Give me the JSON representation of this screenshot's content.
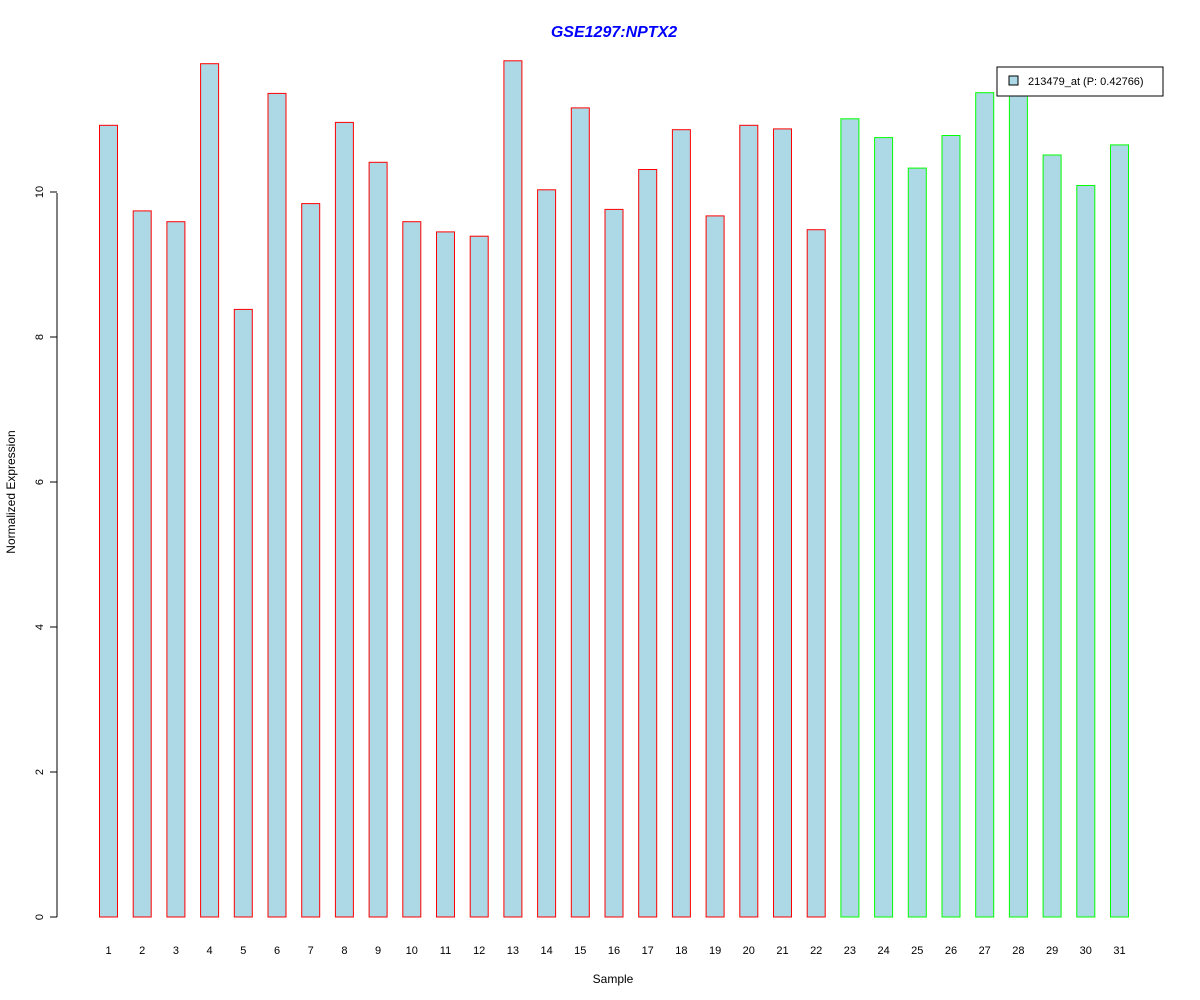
{
  "chart_data": {
    "type": "bar",
    "title": "GSE1297:NPTX2",
    "xlabel": "Sample",
    "ylabel": "Normalized Expression",
    "ylim": [
      0,
      11.9
    ],
    "y_ticks": [
      0,
      2,
      4,
      6,
      8,
      10
    ],
    "categories": [
      "1",
      "2",
      "3",
      "4",
      "5",
      "6",
      "7",
      "8",
      "9",
      "10",
      "11",
      "12",
      "13",
      "14",
      "15",
      "16",
      "17",
      "18",
      "19",
      "20",
      "21",
      "22",
      "23",
      "24",
      "25",
      "26",
      "27",
      "28",
      "29",
      "30",
      "31"
    ],
    "values": [
      10.92,
      9.74,
      9.59,
      11.77,
      8.38,
      11.36,
      9.84,
      10.96,
      10.41,
      9.59,
      9.45,
      9.39,
      11.81,
      10.03,
      11.16,
      9.76,
      10.31,
      10.86,
      9.67,
      10.92,
      10.87,
      9.48,
      11.01,
      10.75,
      10.33,
      10.78,
      11.37,
      11.35,
      10.51,
      10.09,
      10.65
    ],
    "groups": [
      "red",
      "red",
      "red",
      "red",
      "red",
      "red",
      "red",
      "red",
      "red",
      "red",
      "red",
      "red",
      "red",
      "red",
      "red",
      "red",
      "red",
      "red",
      "red",
      "red",
      "red",
      "red",
      "green",
      "green",
      "green",
      "green",
      "green",
      "green",
      "green",
      "green",
      "green"
    ],
    "series": [
      {
        "name": "213479_at (P: 0.42766)",
        "values": [
          10.92,
          9.74,
          9.59,
          11.77,
          8.38,
          11.36,
          9.84,
          10.96,
          10.41,
          9.59,
          9.45,
          9.39,
          11.81,
          10.03,
          11.16,
          9.76,
          10.31,
          10.86,
          9.67,
          10.92,
          10.87,
          9.48,
          11.01,
          10.75,
          10.33,
          10.78,
          11.37,
          11.35,
          10.51,
          10.09,
          10.65
        ]
      }
    ],
    "legend_position": "top-right",
    "grid": false,
    "colors": {
      "bar_fill": "#add8e6",
      "group_red": "#ff0000",
      "group_green": "#00ff00",
      "title": "#0000ff"
    }
  }
}
